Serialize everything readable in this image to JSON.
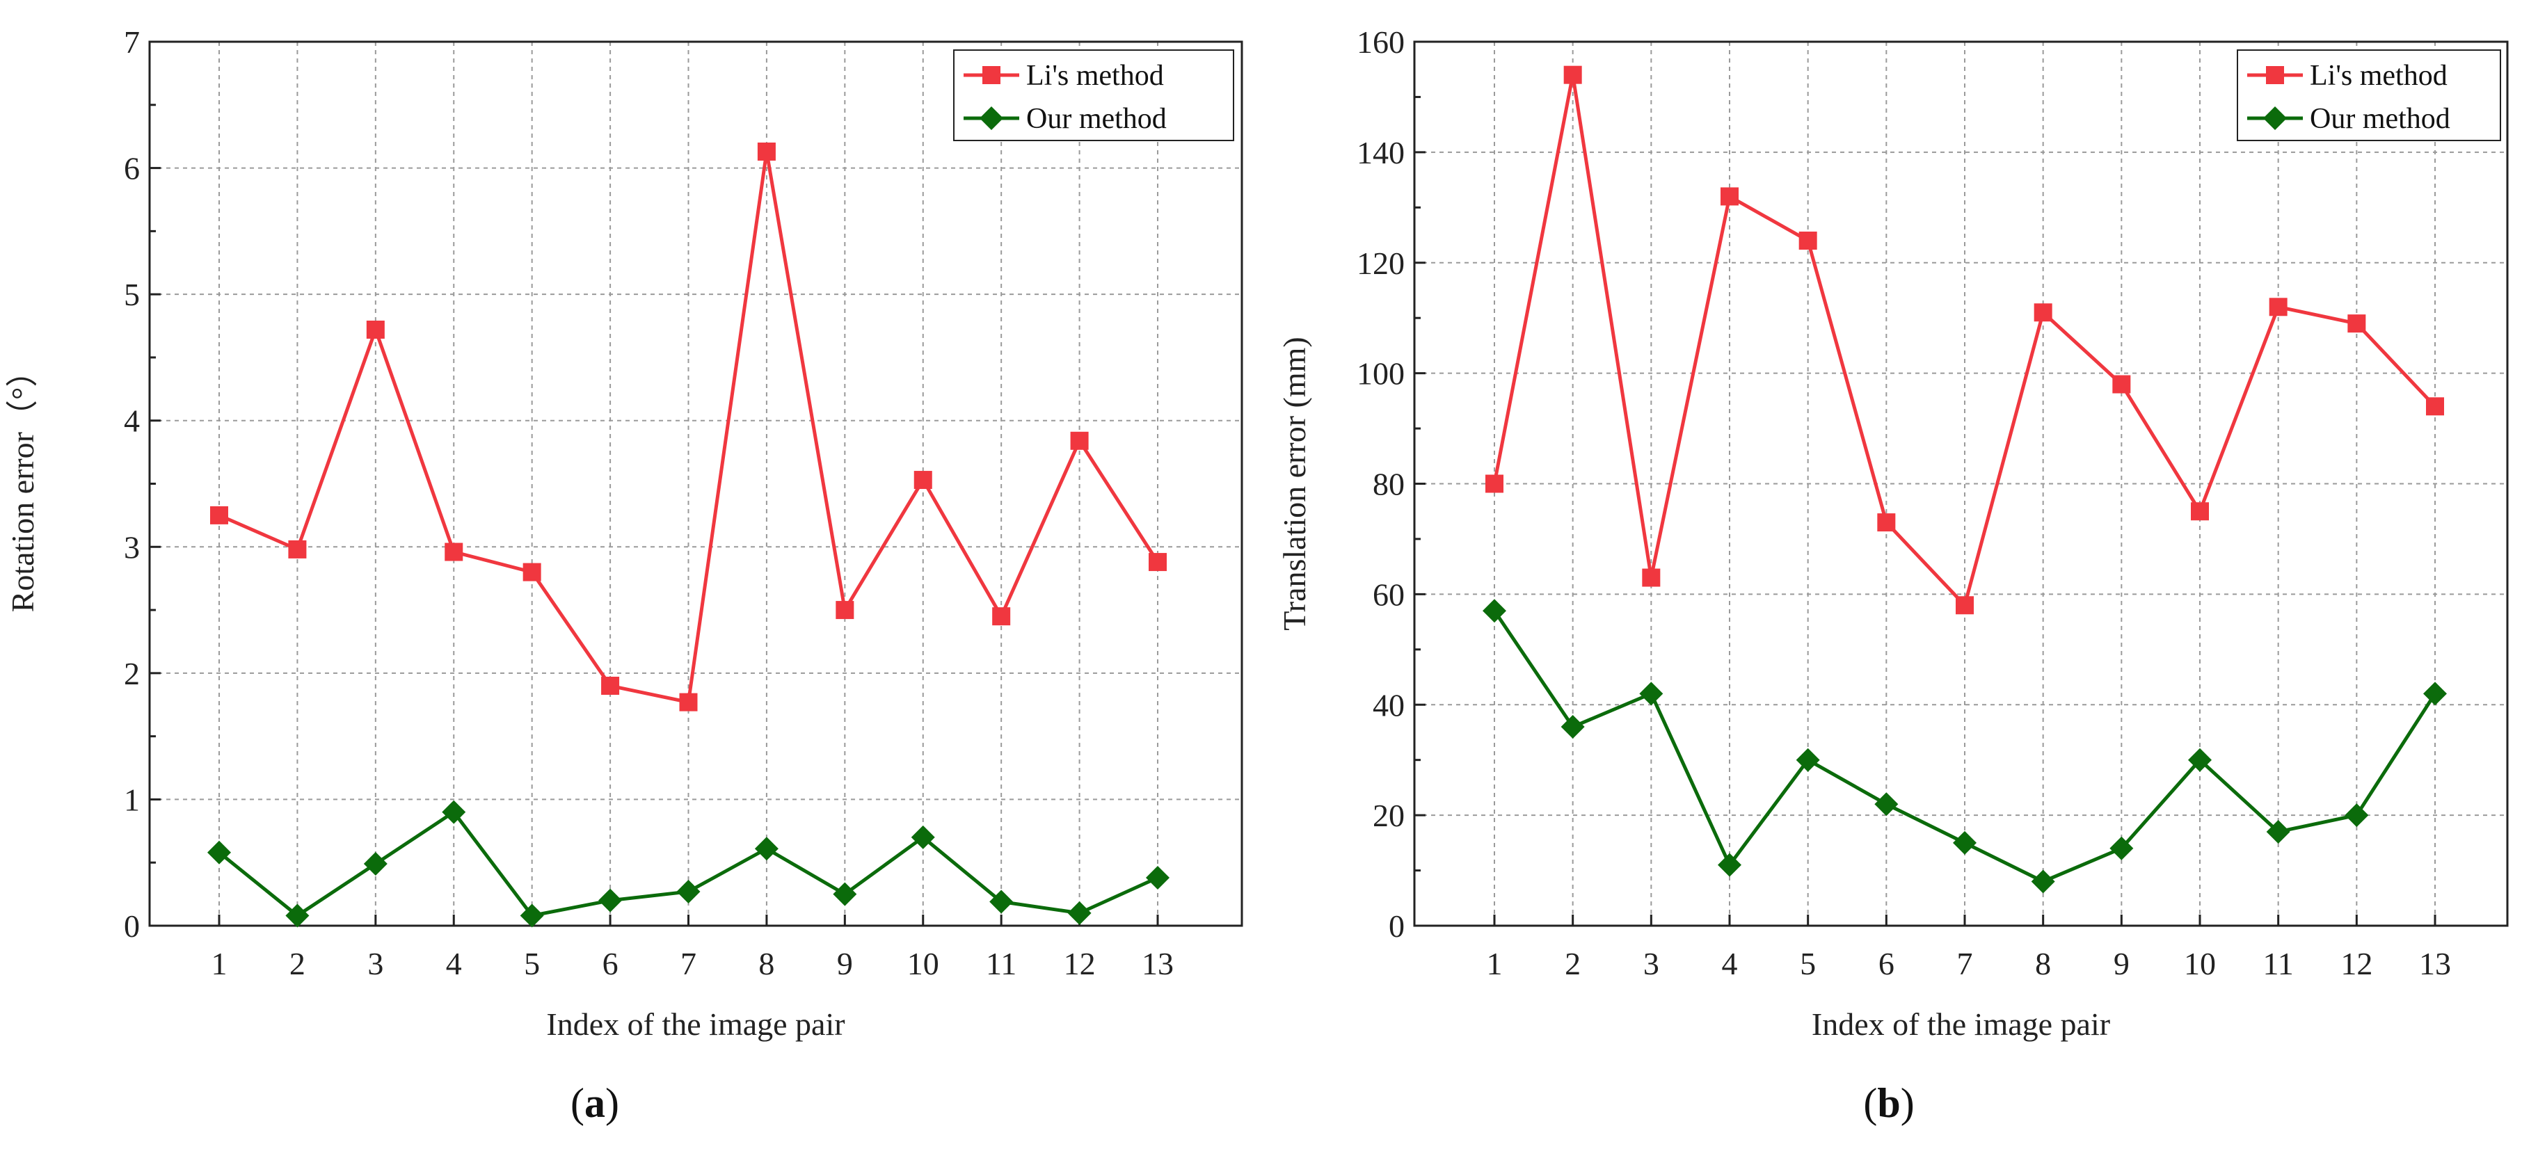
{
  "chart_data": [
    {
      "type": "line",
      "panel_label": "a",
      "xlabel": "Index of the image pair",
      "ylabel": "Rotation error（°）",
      "categories": [
        "1",
        "2",
        "3",
        "4",
        "5",
        "6",
        "7",
        "8",
        "9",
        "10",
        "11",
        "12",
        "13"
      ],
      "ylim": [
        0,
        7
      ],
      "yticks": [
        "0",
        "1",
        "2",
        "3",
        "4",
        "5",
        "6",
        "7"
      ],
      "grid": true,
      "legend_position": "top-right",
      "series": [
        {
          "name": "Li's method",
          "color": "#f0373f",
          "marker": "square",
          "values": [
            3.25,
            2.98,
            4.72,
            2.96,
            2.8,
            1.9,
            1.77,
            6.13,
            2.5,
            3.53,
            2.45,
            3.84,
            2.88
          ]
        },
        {
          "name": "Our method",
          "color": "#0b6b0b",
          "marker": "diamond",
          "values": [
            0.58,
            0.08,
            0.49,
            0.9,
            0.08,
            0.2,
            0.27,
            0.61,
            0.25,
            0.7,
            0.19,
            0.1,
            0.38
          ]
        }
      ]
    },
    {
      "type": "line",
      "panel_label": "b",
      "xlabel": "Index of the image pair",
      "ylabel": "Translation error (mm)",
      "categories": [
        "1",
        "2",
        "3",
        "4",
        "5",
        "6",
        "7",
        "8",
        "9",
        "10",
        "11",
        "12",
        "13"
      ],
      "ylim": [
        0,
        160
      ],
      "yticks": [
        "0",
        "20",
        "40",
        "60",
        "80",
        "100",
        "120",
        "140",
        "160"
      ],
      "grid": true,
      "legend_position": "top-right",
      "series": [
        {
          "name": "Li's method",
          "color": "#f0373f",
          "marker": "square",
          "values": [
            80,
            154,
            63,
            132,
            124,
            73,
            58,
            111,
            98,
            75,
            112,
            109,
            94
          ]
        },
        {
          "name": "Our method",
          "color": "#0b6b0b",
          "marker": "diamond",
          "values": [
            57,
            36,
            42,
            11,
            30,
            22,
            15,
            8,
            14,
            30,
            17,
            20,
            42
          ]
        }
      ]
    }
  ]
}
